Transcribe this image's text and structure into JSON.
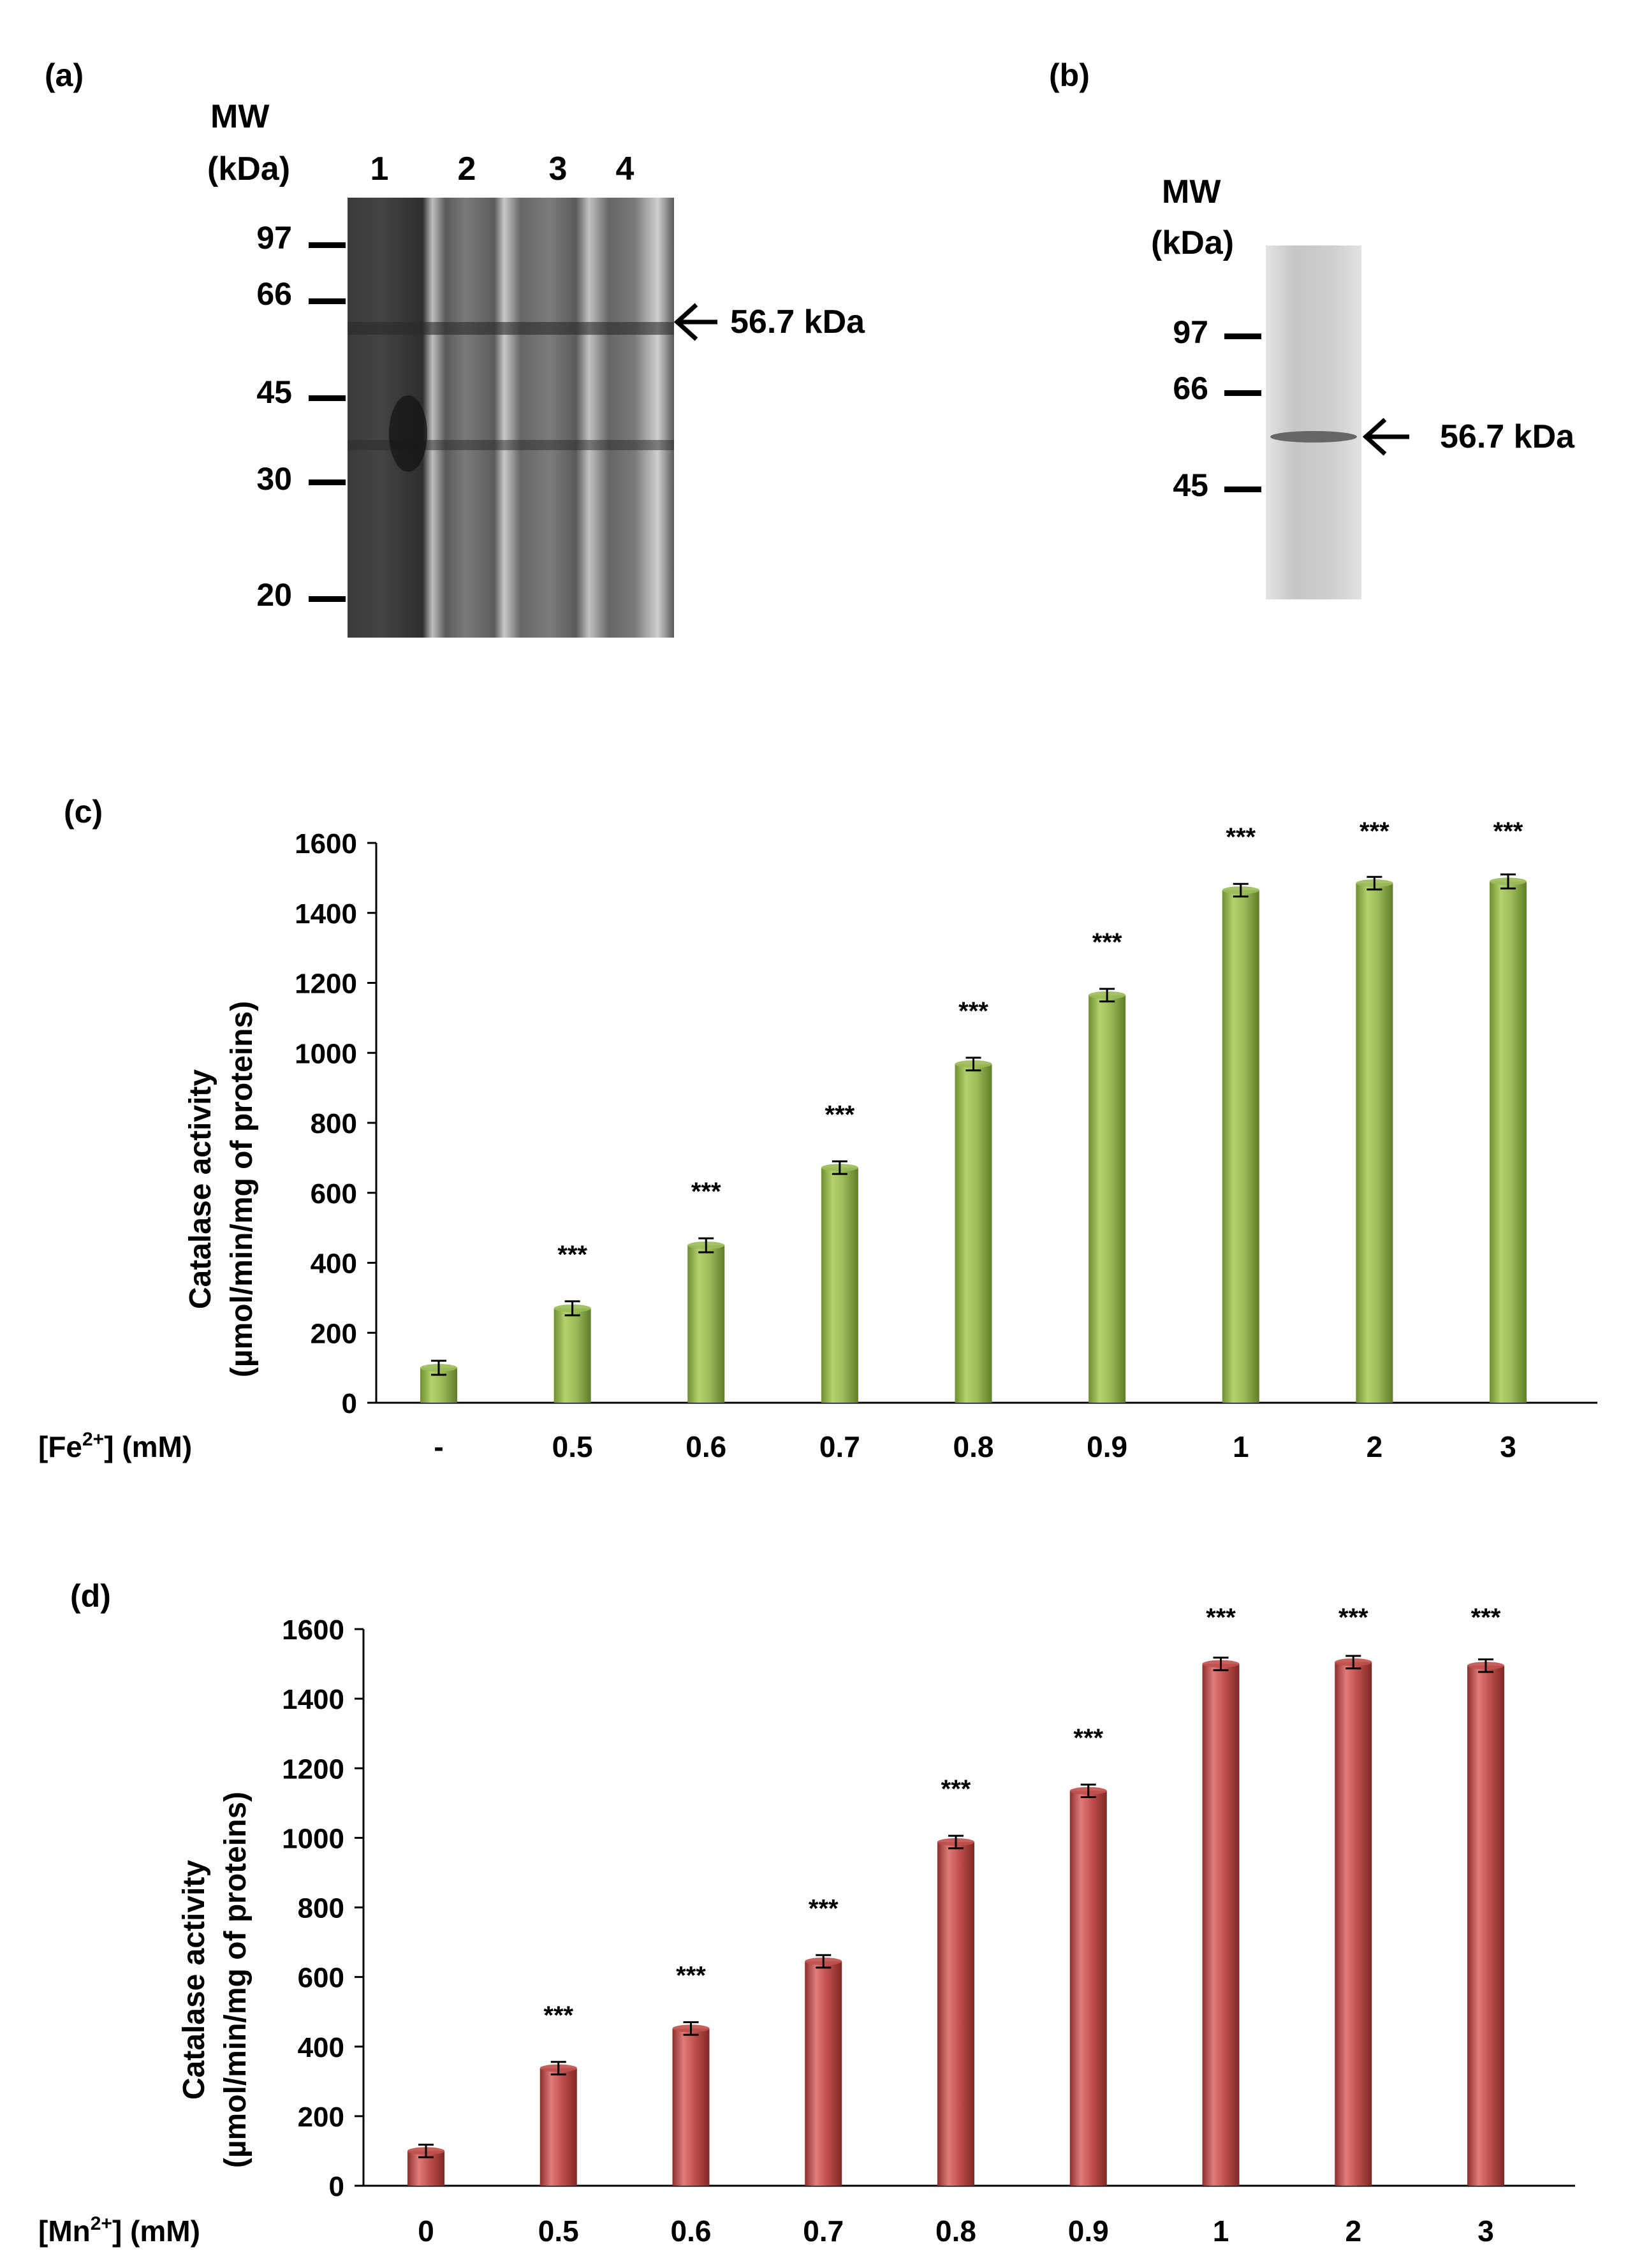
{
  "panel_a": {
    "label": "(a)",
    "mw_label": "MW",
    "kda_label": "(kDa)",
    "lanes": [
      "1",
      "2",
      "3",
      "4"
    ],
    "markers": [
      "97",
      "66",
      "45",
      "30",
      "20"
    ],
    "band_label": "56.7 kDa"
  },
  "panel_b": {
    "label": "(b)",
    "mw_label": "MW",
    "kda_label": "(kDa)",
    "markers": [
      "97",
      "66",
      "45"
    ],
    "band_label": "56.7 kDa"
  },
  "chart_data": [
    {
      "type": "bar",
      "panel_label": "(c)",
      "ylabel_line1": "Catalase activity",
      "ylabel_line2": "(µmol/min/mg of proteins)",
      "xlabel_prefix": "[Fe",
      "xlabel_sup": "2+",
      "xlabel_suffix": "] (mM)",
      "categories": [
        "-",
        "0.5",
        "0.6",
        "0.7",
        "0.8",
        "0.9",
        "1",
        "2",
        "3"
      ],
      "values": [
        100,
        270,
        450,
        672,
        968,
        1165,
        1465,
        1485,
        1490
      ],
      "errors": [
        20,
        20,
        20,
        18,
        18,
        18,
        18,
        18,
        20
      ],
      "significance": [
        "",
        "***",
        "***",
        "***",
        "***",
        "***",
        "***",
        "***",
        "***"
      ],
      "ylim": [
        0,
        1600
      ],
      "yticks": [
        "0",
        "200",
        "400",
        "600",
        "800",
        "1000",
        "1200",
        "1400",
        "1600"
      ],
      "bar_color": "#9bbb59"
    },
    {
      "type": "bar",
      "panel_label": "(d)",
      "ylabel_line1": "Catalase activity",
      "ylabel_line2": "(µmol/min/mg of proteins)",
      "xlabel_prefix": "[Mn",
      "xlabel_sup": "2+",
      "xlabel_suffix": "] (mM)",
      "categories": [
        "0",
        "0.5",
        "0.6",
        "0.7",
        "0.8",
        "0.9",
        "1",
        "2",
        "3"
      ],
      "values": [
        100,
        338,
        452,
        645,
        988,
        1135,
        1500,
        1505,
        1495
      ],
      "errors": [
        18,
        18,
        18,
        18,
        18,
        18,
        18,
        18,
        18
      ],
      "significance": [
        "",
        "***",
        "***",
        "***",
        "***",
        "***",
        "***",
        "***",
        "***"
      ],
      "ylim": [
        0,
        1600
      ],
      "yticks": [
        "0",
        "200",
        "400",
        "600",
        "800",
        "1000",
        "1200",
        "1400",
        "1600"
      ],
      "bar_color": "#c0504d"
    }
  ]
}
